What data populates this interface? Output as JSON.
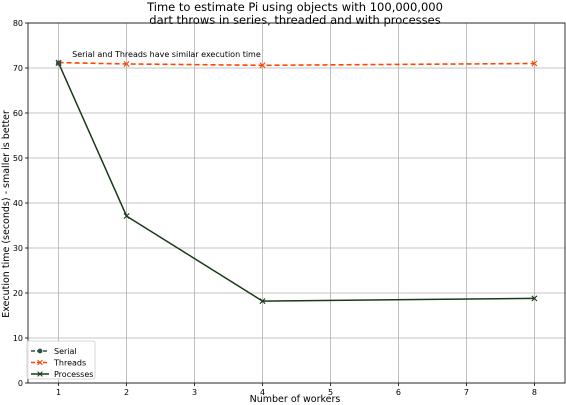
{
  "chart_data": {
    "type": "line",
    "title_lines": [
      "Time to estimate Pi using objects with 100,000,000",
      "dart throws in series, threaded and with processes"
    ],
    "xlabel": "Number of workers",
    "ylabel": "Execution time (seconds) - smaller is better",
    "x_ticks": [
      1,
      2,
      3,
      4,
      5,
      6,
      7,
      8
    ],
    "y_ticks": [
      0,
      10,
      20,
      30,
      40,
      50,
      60,
      70,
      80
    ],
    "xlim": [
      0.55,
      8.45
    ],
    "ylim": [
      0,
      80
    ],
    "grid": true,
    "legend_position": "lower-left",
    "series": [
      {
        "name": "Serial",
        "color": "#2f4f4f",
        "marker": "circle",
        "style": "dashed",
        "x": [
          1
        ],
        "y": [
          71.1
        ]
      },
      {
        "name": "Threads",
        "color": "#ff4500",
        "marker": "x",
        "style": "dashed",
        "x": [
          1,
          2,
          4,
          8
        ],
        "y": [
          71.2,
          70.9,
          70.6,
          71.0
        ]
      },
      {
        "name": "Processes",
        "color": "#1a3a1a",
        "marker": "x",
        "style": "solid",
        "x": [
          1,
          2,
          4,
          8
        ],
        "y": [
          71.1,
          37.1,
          18.2,
          18.8
        ]
      }
    ],
    "annotation": {
      "text": "Serial and Threads have similar execution time",
      "x": 1.2,
      "y": 72.5
    }
  }
}
